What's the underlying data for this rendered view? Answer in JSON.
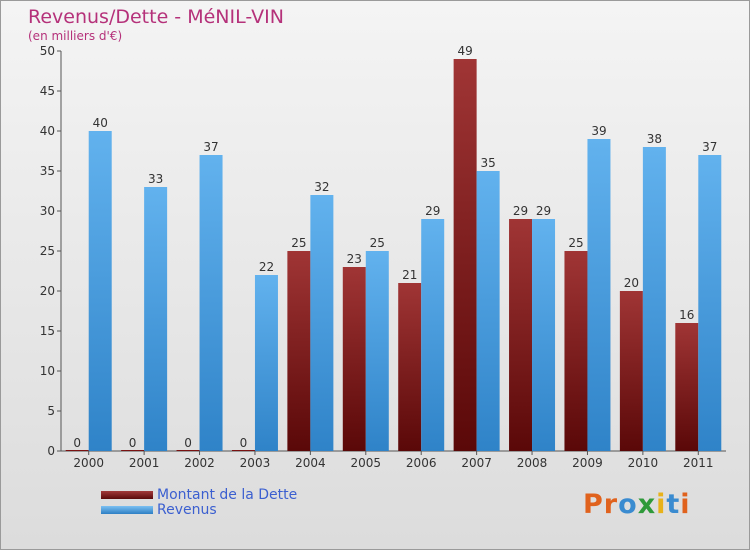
{
  "title": "Revenus/Dette - MéNIL-VIN",
  "subtitle": "(en milliers d'€)",
  "logo_text": "Proxiti",
  "colors": {
    "dette": "#7a1212",
    "revenus": "#4a9fe4",
    "title": "#b5317a",
    "legend_text": "#3b5fd0"
  },
  "chart_data": {
    "type": "bar",
    "categories": [
      "2000",
      "2001",
      "2002",
      "2003",
      "2004",
      "2005",
      "2006",
      "2007",
      "2008",
      "2009",
      "2010",
      "2011"
    ],
    "series": [
      {
        "name": "Montant de la Dette",
        "values": [
          0,
          0,
          0,
          0,
          25,
          23,
          21,
          49,
          29,
          25,
          20,
          16
        ]
      },
      {
        "name": "Revenus",
        "values": [
          40,
          33,
          37,
          22,
          32,
          25,
          29,
          35,
          29,
          39,
          38,
          37
        ]
      }
    ],
    "ylim": [
      0,
      50
    ],
    "yticks": [
      0,
      5,
      10,
      15,
      20,
      25,
      30,
      35,
      40,
      45,
      50
    ],
    "grid": false,
    "legend": "bottom-left"
  },
  "legend": [
    {
      "label": "Montant de la Dette",
      "icon": "swatch-dark-red"
    },
    {
      "label": "Revenus",
      "icon": "swatch-blue"
    }
  ]
}
